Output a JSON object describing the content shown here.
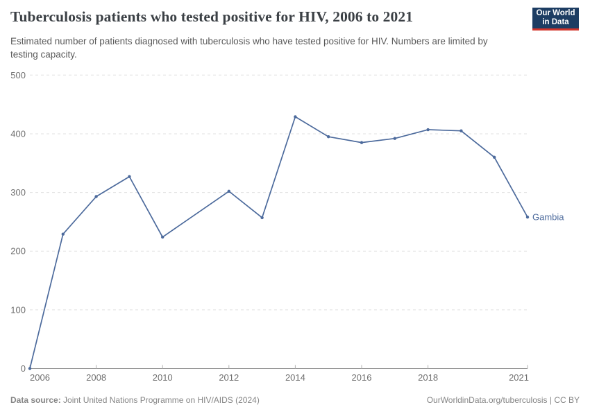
{
  "header": {
    "title": "Tuberculosis patients who tested positive for HIV, 2006 to 2021",
    "subtitle": "Estimated number of patients diagnosed with tuberculosis who have tested positive for HIV. Numbers are limited by testing capacity.",
    "logo": {
      "line1": "Our World",
      "line2": "in Data"
    }
  },
  "footer": {
    "datasource_label": "Data source:",
    "datasource_value": " Joint United Nations Programme on HIV/AIDS (2024)",
    "attribution": "OurWorldinData.org/tuberculosis | CC BY"
  },
  "colors": {
    "series_blue": "#4C6A9C",
    "gridline": "#e0e0e0",
    "axis": "#999999",
    "tick_label": "#6f6f6f",
    "logo_navy": "#1d3d63",
    "logo_red": "#d1352c"
  },
  "chart_data": {
    "type": "line",
    "title": "Tuberculosis patients who tested positive for HIV, 2006 to 2021",
    "xlabel": "",
    "ylabel": "",
    "xlim": [
      2006,
      2021
    ],
    "ylim": [
      0,
      500
    ],
    "grid": "horizontal-dashed",
    "legend_position": "end-of-line-label",
    "xticks": [
      2006,
      2008,
      2010,
      2012,
      2014,
      2016,
      2018,
      2021
    ],
    "yticks": [
      0,
      100,
      200,
      300,
      400,
      500
    ],
    "series": [
      {
        "name": "Gambia",
        "color": "#4C6A9C",
        "x": [
          2006,
          2007,
          2008,
          2009,
          2010,
          2012,
          2013,
          2014,
          2015,
          2016,
          2017,
          2018,
          2019,
          2020,
          2021
        ],
        "values": [
          0,
          229,
          293,
          327,
          224,
          302,
          257,
          429,
          395,
          385,
          392,
          407,
          405,
          360,
          258
        ]
      }
    ]
  }
}
